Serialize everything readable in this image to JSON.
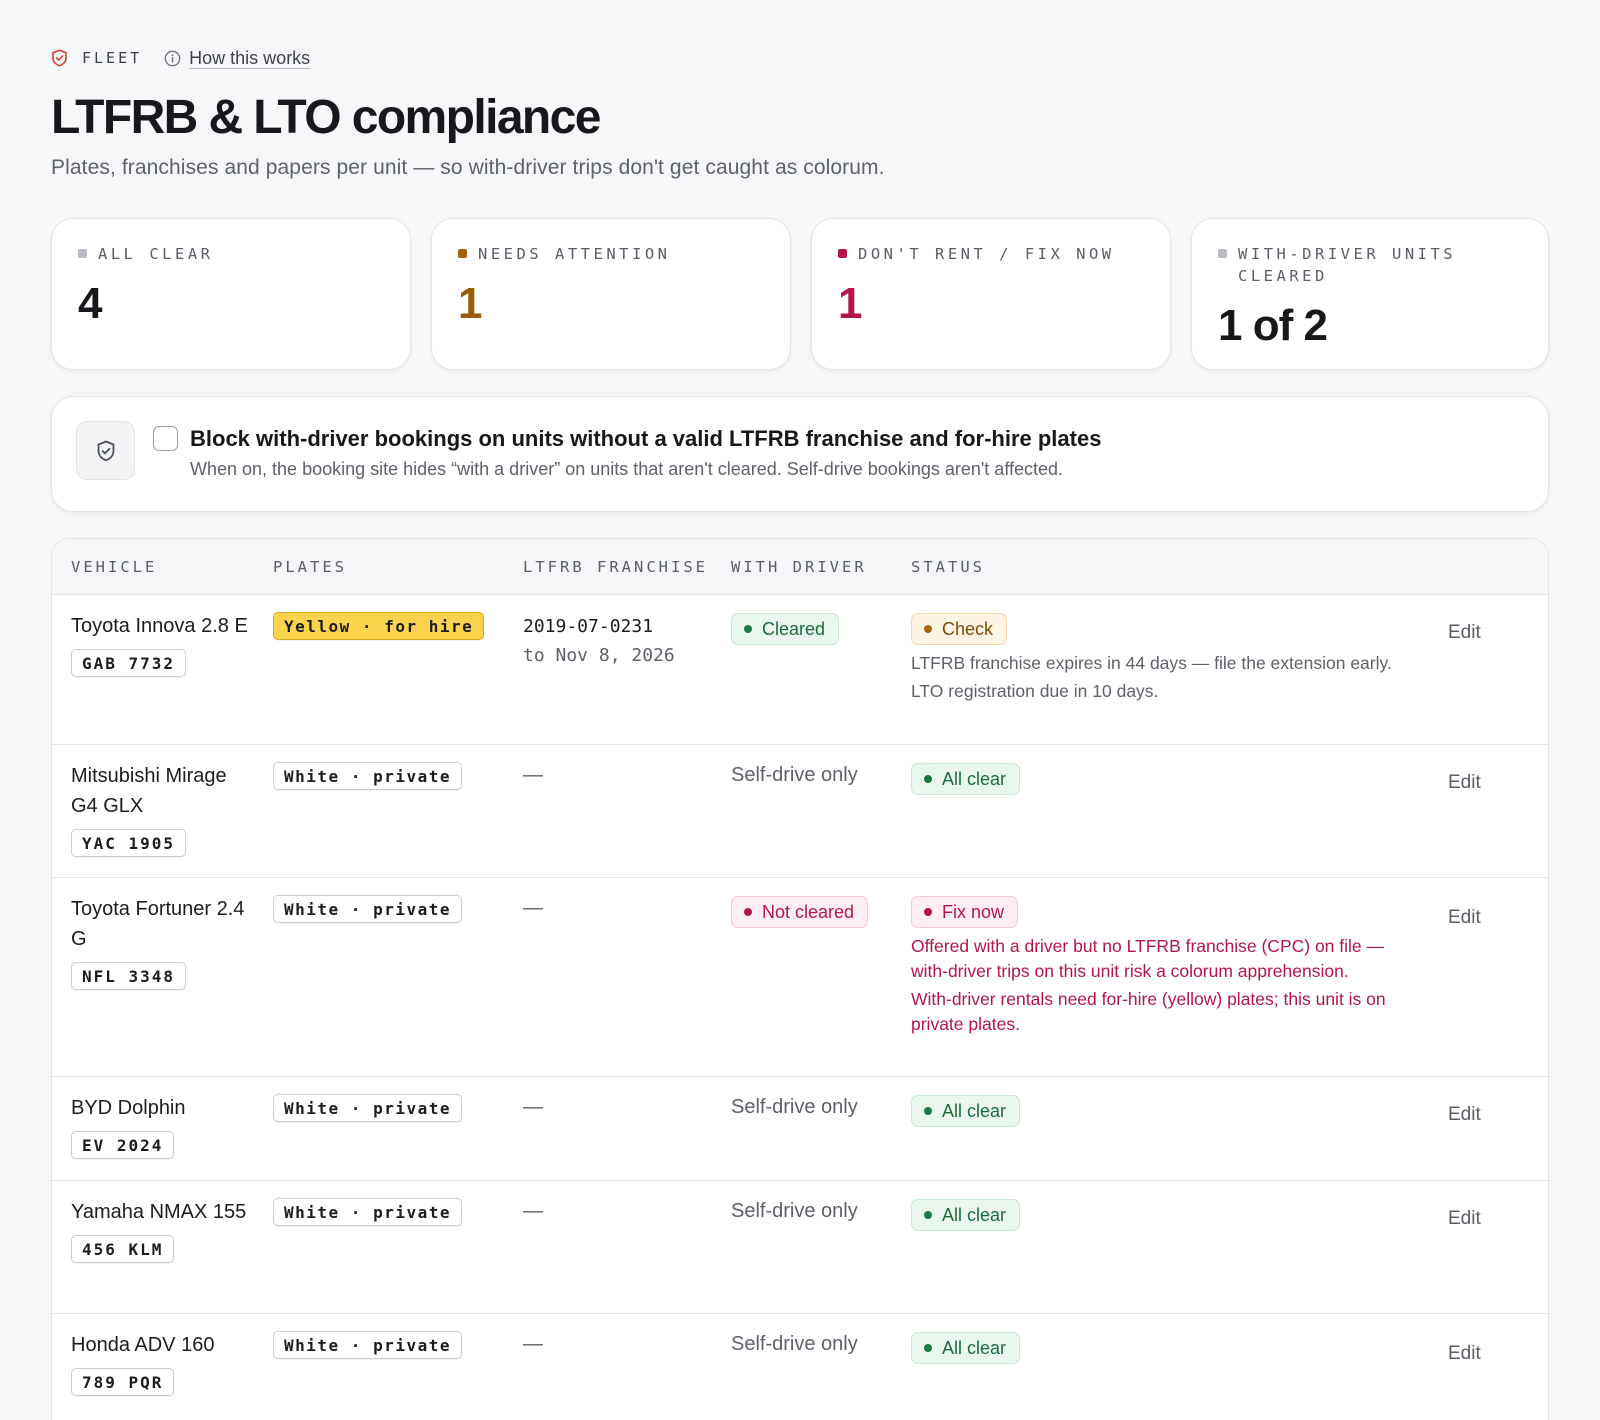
{
  "header": {
    "section": "FLEET",
    "help_link": "How this works",
    "title": "LTFRB & LTO compliance",
    "subtitle": "Plates, franchises and papers per unit — so with-driver trips don't get caught as colorum."
  },
  "colors": {
    "all_clear": "#1c1d21",
    "needs_attention": "#9a5c06",
    "dont_rent": "#b3174a",
    "brand_red": "#d0452f"
  },
  "stats": [
    {
      "label": "ALL CLEAR",
      "value": "4",
      "dot": "#b9bcc3",
      "color": "#17181b"
    },
    {
      "label": "NEEDS ATTENTION",
      "value": "1",
      "dot": "#a4640c",
      "color": "#9a5c06"
    },
    {
      "label": "DON'T RENT / FIX NOW",
      "value": "1",
      "dot": "#b3174a",
      "color": "#b3174a"
    },
    {
      "label": "WITH-DRIVER UNITS CLEARED",
      "value": "1 of 2",
      "dot": "#b9bcc3",
      "color": "#17181b"
    }
  ],
  "block_setting": {
    "checked": false,
    "title": "Block with-driver bookings on units without a valid LTFRB franchise and for-hire plates",
    "description": "When on, the booking site hides “with a driver” on units that aren't cleared. Self-drive bookings aren't affected."
  },
  "table": {
    "columns": [
      "VEHICLE",
      "PLATES",
      "LTFRB FRANCHISE",
      "WITH DRIVER",
      "STATUS"
    ],
    "edit_label": "Edit",
    "rows": [
      {
        "vehicle": "Toyota Innova 2.8 E",
        "plate": "GAB 7732",
        "plate_type": "Yellow · for hire",
        "franchise_no": "2019-07-0231",
        "franchise_exp": "to Nov 8, 2026",
        "with_driver": "Cleared",
        "status": "Check",
        "notes": [
          "LTFRB franchise expires in 44 days — file the extension early.",
          "LTO registration due in 10 days."
        ]
      },
      {
        "vehicle": "Mitsubishi Mirage G4 GLX",
        "plate": "YAC 1905",
        "plate_type": "White · private",
        "franchise": "—",
        "with_driver": "Self-drive only",
        "status": "All clear"
      },
      {
        "vehicle": "Toyota Fortuner 2.4 G",
        "plate": "NFL 3348",
        "plate_type": "White · private",
        "franchise": "—",
        "with_driver": "Not cleared",
        "status": "Fix now",
        "notes": [
          "Offered with a driver but no LTFRB franchise (CPC) on file — with-driver trips on this unit risk a colorum apprehension.",
          "With-driver rentals need for-hire (yellow) plates; this unit is on private plates."
        ]
      },
      {
        "vehicle": "BYD Dolphin",
        "plate": "EV 2024",
        "plate_type": "White · private",
        "franchise": "—",
        "with_driver": "Self-drive only",
        "status": "All clear"
      },
      {
        "vehicle": "Yamaha NMAX 155",
        "plate": "456 KLM",
        "plate_type": "White · private",
        "franchise": "—",
        "with_driver": "Self-drive only",
        "status": "All clear"
      },
      {
        "vehicle": "Honda ADV 160",
        "plate": "789 PQR",
        "plate_type": "White · private",
        "franchise": "—",
        "with_driver": "Self-drive only",
        "status": "All clear"
      }
    ]
  }
}
